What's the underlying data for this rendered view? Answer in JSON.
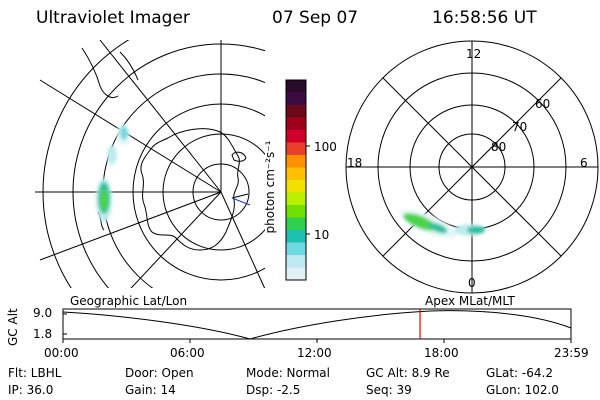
{
  "header": {
    "instrument": "Ultraviolet Imager",
    "date": "07 Sep 07",
    "time": "16:58:56 UT"
  },
  "colorbar": {
    "label": "photon cm⁻²s⁻¹",
    "ticks": [
      "100",
      "10"
    ],
    "colors": [
      "#2a0a2a",
      "#3a0a40",
      "#6a0a1a",
      "#a0001a",
      "#d0002a",
      "#e8402a",
      "#ff9000",
      "#ffc000",
      "#f0e000",
      "#b8f000",
      "#70e000",
      "#30d050",
      "#20c0b0",
      "#70d8e0",
      "#c0e8f0",
      "#e0f0f4"
    ]
  },
  "left_map": {
    "title": "Geographic Lat/Lon",
    "auroral_colors": [
      "#4cd44c",
      "#2cc0a0",
      "#a0e8a0",
      "#c0ecee",
      "#e4f6f8"
    ]
  },
  "right_map": {
    "title": "Apex  MLat/MLT",
    "mlt_labels": [
      "12",
      "18",
      "6",
      "0"
    ],
    "lat_labels": [
      "60",
      "70",
      "80"
    ]
  },
  "altitude_panel": {
    "axis_label": "GC Alt",
    "ticks": [
      "9.0",
      "1.8"
    ],
    "time_labels": [
      "00:00",
      "06:00",
      "12:00",
      "18:00",
      "23:59"
    ],
    "marker_color": "#e00000"
  },
  "footer": {
    "filter": "Flt: LBHL",
    "door": "Door: Open",
    "mode": "Mode: Normal",
    "gc_alt": "GC Alt: 8.9 Re",
    "glat": "GLat: -64.2",
    "ip": "IP: 36.0",
    "gain": "Gain: 14",
    "dsp": "Dsp:    -2.5",
    "seq": "Seq: 39",
    "glon": "GLon: 102.0"
  }
}
